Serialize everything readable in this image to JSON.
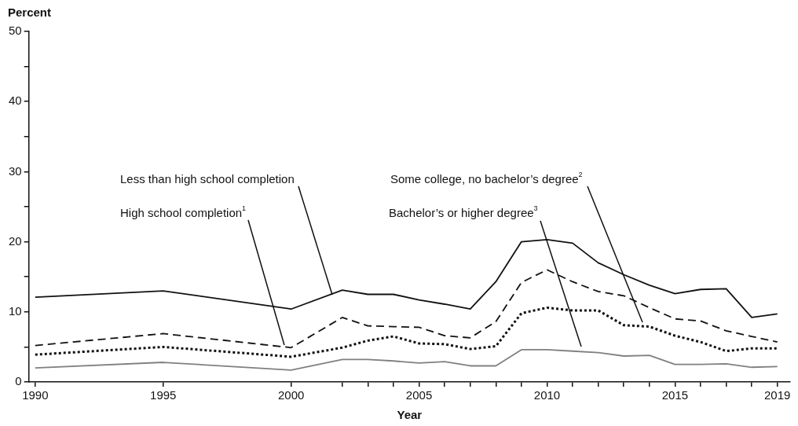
{
  "chart_data": {
    "type": "line",
    "xlabel": "Year",
    "ylabel": "Percent",
    "x": [
      1990,
      1995,
      2000,
      2002,
      2003,
      2004,
      2005,
      2006,
      2007,
      2008,
      2009,
      2010,
      2011,
      2012,
      2013,
      2014,
      2015,
      2016,
      2017,
      2018,
      2019
    ],
    "xlim": [
      1989.75,
      2019.5
    ],
    "xticks": [
      1990,
      1995,
      2000,
      {
        "value": 2002,
        "label": null
      },
      {
        "value": 2003,
        "label": null
      },
      {
        "value": 2004,
        "label": null
      },
      2005,
      {
        "value": 2006,
        "label": null
      },
      {
        "value": 2007,
        "label": null
      },
      {
        "value": 2008,
        "label": null
      },
      {
        "value": 2009,
        "label": null
      },
      2010,
      {
        "value": 2011,
        "label": null
      },
      {
        "value": 2012,
        "label": null
      },
      {
        "value": 2013,
        "label": null
      },
      {
        "value": 2014,
        "label": null
      },
      2015,
      {
        "value": 2016,
        "label": null
      },
      {
        "value": 2017,
        "label": null
      },
      {
        "value": 2018,
        "label": null
      },
      2019
    ],
    "ylim": [
      0,
      50
    ],
    "yticks": [
      0,
      {
        "value": 5,
        "label": null
      },
      10,
      {
        "value": 15,
        "label": null
      },
      20,
      {
        "value": 25,
        "label": null
      },
      30,
      {
        "value": 35,
        "label": null
      },
      40,
      {
        "value": 45,
        "label": null
      },
      50
    ],
    "marker": "none",
    "series": [
      {
        "name": "Less than high school completion",
        "color": "#111111",
        "line_style": "solid",
        "values": [
          12.1,
          13.0,
          10.4,
          13.1,
          12.5,
          12.5,
          11.7,
          11.1,
          10.4,
          14.3,
          20.0,
          20.3,
          19.8,
          17.0,
          15.3,
          13.8,
          12.6,
          13.2,
          13.3,
          9.2,
          9.7
        ]
      },
      {
        "name": "High school completion$^{1}$",
        "color": "#111111",
        "line_style": "dotted",
        "values": [
          3.9,
          5.0,
          3.6,
          4.9,
          5.9,
          6.5,
          5.5,
          5.4,
          4.7,
          5.1,
          9.8,
          10.6,
          10.2,
          10.2,
          8.1,
          7.9,
          6.6,
          5.7,
          4.4,
          4.8,
          4.8
        ]
      },
      {
        "name": "Some college, no bachelor’s degree$^{2}$",
        "color": "#111111",
        "line_style": "dashed",
        "values": [
          5.2,
          6.9,
          4.9,
          9.2,
          8.0,
          7.9,
          7.8,
          6.6,
          6.3,
          8.6,
          14.2,
          16.0,
          14.3,
          12.9,
          12.3,
          10.6,
          9.0,
          8.7,
          7.3,
          6.5,
          5.7
        ]
      },
      {
        "name": "Bachelor’s or higher degree$^{3}$",
        "color": "#808080",
        "line_style": "solid",
        "values": [
          2.0,
          2.8,
          1.7,
          3.2,
          3.2,
          3.0,
          2.7,
          2.9,
          2.3,
          2.3,
          4.6,
          4.6,
          4.4,
          4.2,
          3.7,
          3.8,
          2.5,
          2.5,
          2.6,
          2.1,
          2.2
        ]
      }
    ]
  }
}
